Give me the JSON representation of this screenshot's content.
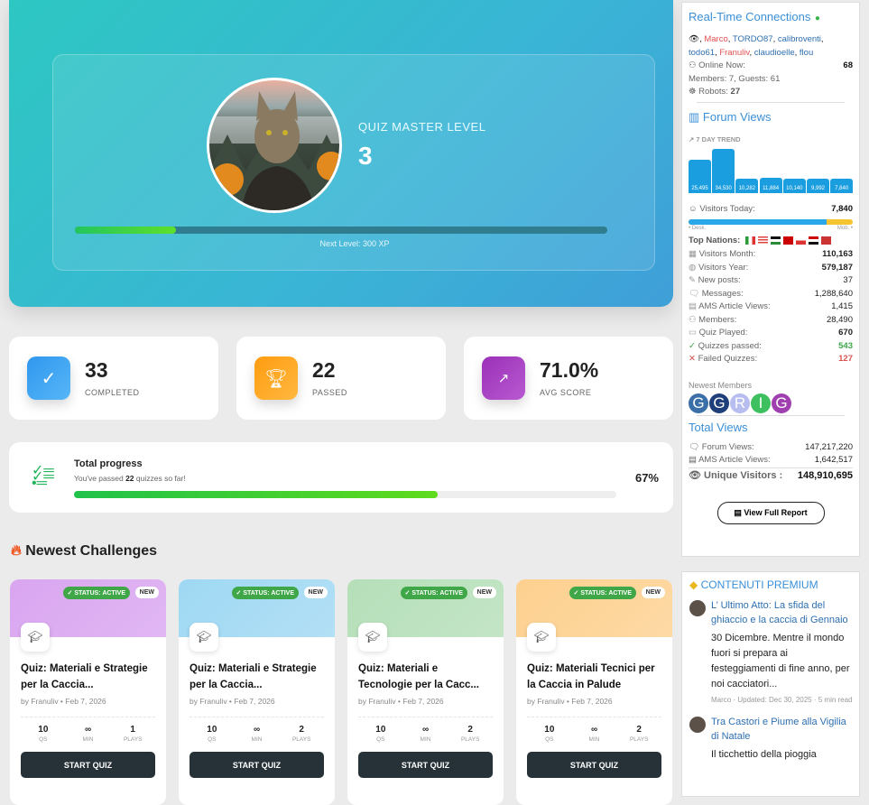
{
  "hero": {
    "level_label": "QUIZ MASTER LEVEL",
    "level": "3",
    "xp_progress_pct": 19,
    "next_level": "Next Level: 300 XP"
  },
  "stats": [
    {
      "value": "33",
      "label": "COMPLETED",
      "icon": "check-circle-icon",
      "color": "#3aa3f0"
    },
    {
      "value": "22",
      "label": "PASSED",
      "icon": "trophy-icon",
      "color": "#ffa41c"
    },
    {
      "value": "71.0%",
      "label": "AVG SCORE",
      "icon": "chart-line-icon",
      "color": "#a13fc0"
    }
  ],
  "progress": {
    "title": "Total progress",
    "sub_pre": "You've passed ",
    "count": "22",
    "sub_post": " quizzes so far!",
    "percent_label": "67%",
    "percent": 67
  },
  "section_title": "Newest Challenges",
  "cards": [
    {
      "status": "✓ STATUS: ACTIVE",
      "badge": "NEW",
      "title": "Quiz: Materiali e Strategie per la Caccia...",
      "by": "by Franuliv • Feb 7, 2026",
      "qs": "10",
      "qs_l": "QS",
      "min": "∞",
      "min_l": "MIN",
      "plays": "1",
      "plays_l": "PLAYS",
      "button": "START QUIZ",
      "color": "#d9a5f0"
    },
    {
      "status": "✓ STATUS: ACTIVE",
      "badge": "NEW",
      "title": "Quiz: Materiali e Strategie per la Caccia...",
      "by": "by Franuliv • Feb 7, 2026",
      "qs": "10",
      "qs_l": "QS",
      "min": "∞",
      "min_l": "MIN",
      "plays": "2",
      "plays_l": "PLAYS",
      "button": "START QUIZ",
      "color": "#9fd8f3"
    },
    {
      "status": "✓ STATUS: ACTIVE",
      "badge": "NEW",
      "title": "Quiz: Materiali e Tecnologie per la Cacc...",
      "by": "by Franuliv • Feb 7, 2026",
      "qs": "10",
      "qs_l": "QS",
      "min": "∞",
      "min_l": "MIN",
      "plays": "2",
      "plays_l": "PLAYS",
      "button": "START QUIZ",
      "color": "#b5dfb8"
    },
    {
      "status": "✓ STATUS: ACTIVE",
      "badge": "NEW",
      "title": "Quiz: Materiali Tecnici per la Caccia in Palude",
      "by": "by Franuliv • Feb 7, 2026",
      "qs": "10",
      "qs_l": "QS",
      "min": "∞",
      "min_l": "MIN",
      "plays": "2",
      "plays_l": "PLAYS",
      "button": "START QUIZ",
      "color": "#fdd08e"
    }
  ],
  "sidebar": {
    "rt_title": "Real-Time Connections",
    "users": [
      {
        "n": "Marco",
        "red": true
      },
      {
        "n": "TORDO87"
      },
      {
        "n": "calibroventi"
      },
      {
        "n": "todo61"
      },
      {
        "n": "Franuliv",
        "red": true
      },
      {
        "n": "claudioelle"
      },
      {
        "n": "flou"
      }
    ],
    "online_label": "Online Now:",
    "online": "68",
    "members_guests": "Members: 7, Guests: 61",
    "robots_label": "Robots:",
    "robots": "27",
    "fv_title": "Forum Views",
    "trend_label": "7 DAY TREND",
    "trend": [
      25495,
      34530,
      10282,
      11884,
      10140,
      9992,
      7840
    ],
    "trend_labels": [
      "25,495",
      "34,530",
      "10,282",
      "11,884",
      "10,140",
      "9,992",
      "7,840"
    ],
    "today_label": "Visitors Today:",
    "today": "7,840",
    "desk": "• Desk.",
    "mob": "Mob. •",
    "desk_pct": 84,
    "nations_label": "Top Nations:",
    "stats": [
      {
        "l": "Visitors Month:",
        "v": "110,163",
        "b": true
      },
      {
        "l": "Visitors Year:",
        "v": "579,187",
        "b": true
      },
      {
        "l": "New posts:",
        "v": "37"
      },
      {
        "l": "Messages:",
        "v": "1,288,640"
      },
      {
        "l": "AMS Article Views:",
        "v": "1,415"
      },
      {
        "l": "Members:",
        "v": "28,490"
      },
      {
        "l": "Quiz Played:",
        "v": "670",
        "b": true
      },
      {
        "l": "Quizzes passed:",
        "v": "543",
        "c": "#3aa64a",
        "i": "✓"
      },
      {
        "l": "Failed Quizzes:",
        "v": "127",
        "c": "#d9534f",
        "i": "✕"
      }
    ],
    "newest_label": "Newest Members",
    "members": [
      {
        "l": "G",
        "c": "#3a6fa8"
      },
      {
        "l": "G",
        "c": "#1f3f7a"
      },
      {
        "l": "R",
        "c": "#b8bdf0"
      },
      {
        "l": "I",
        "c": "#3fc060"
      },
      {
        "l": "G",
        "c": "#a040b0"
      }
    ],
    "tv_title": "Total Views",
    "forum_views_label": "Forum Views:",
    "forum_views": "147,217,220",
    "ams_label": "AMS Article Views:",
    "ams": "1,642,517",
    "unique_label": "Unique Visitors :",
    "unique": "148,910,695",
    "report_button": "View Full Report",
    "premium_title": "CONTENUTI PREMIUM",
    "articles": [
      {
        "title": "L’ Ultimo Atto: La sfida del ghiaccio e la caccia di Gennaio",
        "excerpt": "30 Dicembre. Mentre il mondo fuori si prepara ai festeggiamenti di fine anno, per noi cacciatori...",
        "meta": "Marco · Updated: Dec 30, 2025 · 5 min read"
      },
      {
        "title": "Tra Castori e Piume alla Vigilia di Natale",
        "excerpt": "Il ticchettio della pioggia"
      }
    ]
  }
}
